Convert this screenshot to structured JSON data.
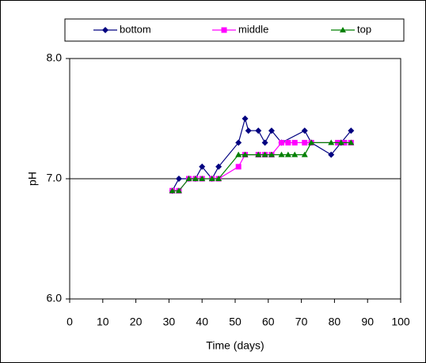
{
  "chart_data": {
    "type": "line",
    "xlabel": "Time (days)",
    "ylabel": "pH",
    "xlim": [
      0,
      100
    ],
    "xticks": [
      0,
      10,
      20,
      30,
      40,
      50,
      60,
      70,
      80,
      90,
      100
    ],
    "ylim": [
      6,
      8
    ],
    "yticks": [
      {
        "value": 6,
        "label": "6.0"
      },
      {
        "value": 7,
        "label": "7.0"
      },
      {
        "value": 8,
        "label": "8.0"
      }
    ],
    "grid": true,
    "legend": "top",
    "series": [
      {
        "name": "bottom",
        "color": "#000080",
        "marker": "diamond",
        "x": [
          31,
          33,
          36,
          38,
          40,
          43,
          45,
          51,
          53,
          54,
          57,
          59,
          61,
          64,
          71,
          73,
          79,
          82,
          85
        ],
        "values": [
          6.9,
          7.0,
          7.0,
          7.0,
          7.1,
          7.0,
          7.1,
          7.3,
          7.5,
          7.4,
          7.4,
          7.3,
          7.4,
          7.3,
          7.4,
          7.3,
          7.2,
          7.3,
          7.4
        ]
      },
      {
        "name": "middle",
        "color": "#ff00ff",
        "marker": "square",
        "x": [
          31,
          33,
          36,
          38,
          40,
          43,
          45,
          51,
          53,
          57,
          59,
          61,
          64,
          66,
          68,
          71,
          73,
          81,
          83,
          85
        ],
        "values": [
          6.9,
          6.9,
          7.0,
          7.0,
          7.0,
          7.0,
          7.0,
          7.1,
          7.2,
          7.2,
          7.2,
          7.2,
          7.3,
          7.3,
          7.3,
          7.3,
          7.3,
          7.3,
          7.3,
          7.3
        ]
      },
      {
        "name": "top",
        "color": "#008000",
        "marker": "triangle",
        "x": [
          31,
          33,
          36,
          38,
          40,
          43,
          45,
          51,
          53,
          57,
          59,
          61,
          64,
          66,
          68,
          71,
          73,
          79,
          82,
          85
        ],
        "values": [
          6.9,
          6.9,
          7.0,
          7.0,
          7.0,
          7.0,
          7.0,
          7.2,
          7.2,
          7.2,
          7.2,
          7.2,
          7.2,
          7.2,
          7.2,
          7.2,
          7.3,
          7.3,
          7.3,
          7.3
        ]
      }
    ]
  }
}
